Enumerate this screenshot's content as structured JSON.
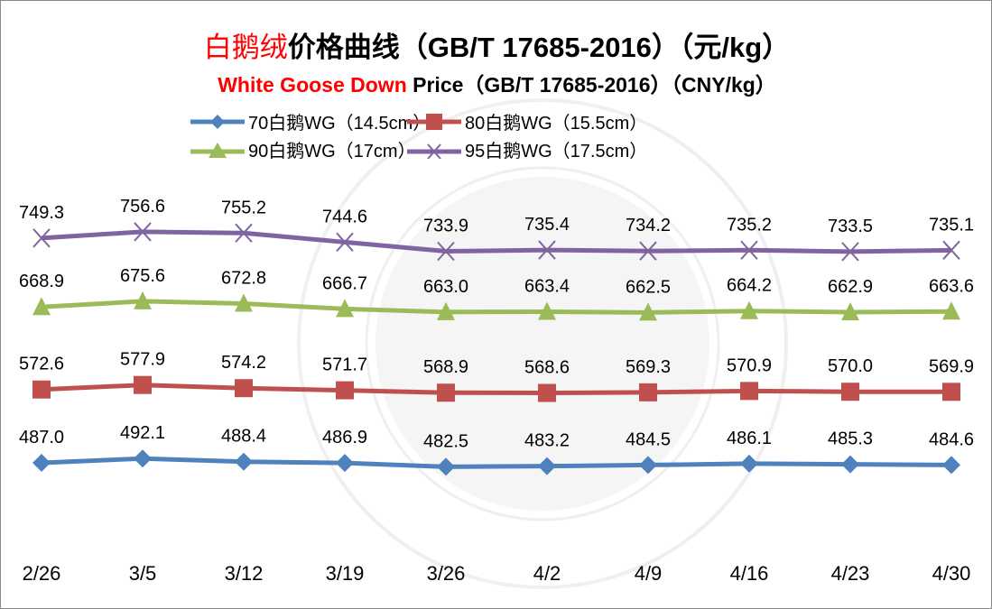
{
  "chart_data": {
    "type": "line",
    "title": {
      "red_part": "白鹅绒",
      "rest": "价格曲线（GB/T 17685-2016）（元/kg）"
    },
    "subtitle": {
      "red_part": "White Goose Down",
      "rest": " Price（GB/T 17685-2016）（CNY/kg）"
    },
    "xlabel": "",
    "ylabel": "",
    "ylim": [
      400,
      800
    ],
    "grid": false,
    "legend_position": "top",
    "categories": [
      "2/26",
      "3/5",
      "3/12",
      "3/19",
      "3/26",
      "4/2",
      "4/9",
      "4/16",
      "4/23",
      "4/30"
    ],
    "series": [
      {
        "name": "70白鹅WG（14.5cm）",
        "color": "#4f81bd",
        "marker": "diamond",
        "values": [
          487.0,
          492.1,
          488.4,
          486.9,
          482.5,
          483.2,
          484.5,
          486.1,
          485.3,
          484.6
        ]
      },
      {
        "name": "80白鹅WG（15.5cm）",
        "color": "#c0504d",
        "marker": "square",
        "values": [
          572.6,
          577.9,
          574.2,
          571.7,
          568.9,
          568.6,
          569.3,
          570.9,
          570.0,
          569.9
        ]
      },
      {
        "name": "90白鹅WG（17cm）",
        "color": "#9bbb59",
        "marker": "triangle",
        "values": [
          668.9,
          675.6,
          672.8,
          666.7,
          663.0,
          663.4,
          662.5,
          664.2,
          662.9,
          663.6
        ]
      },
      {
        "name": "95白鹅WG（17.5cm）",
        "color": "#8064a2",
        "marker": "x",
        "values": [
          749.3,
          756.6,
          755.2,
          744.6,
          733.9,
          735.4,
          734.2,
          735.2,
          733.5,
          735.1
        ]
      }
    ]
  }
}
